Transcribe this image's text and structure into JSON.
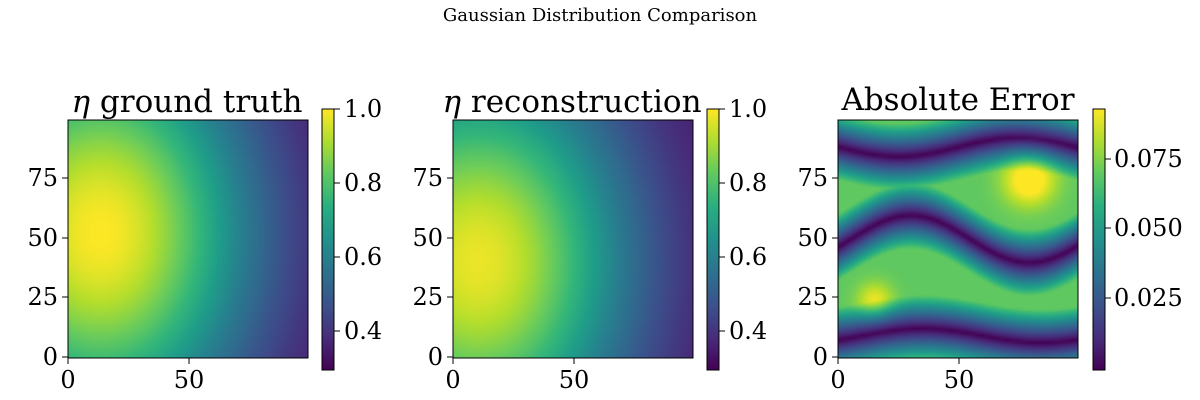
{
  "suptitle": "Gaussian Distribution Comparison",
  "chart_data": [
    {
      "type": "heatmap",
      "title_symbol": "η",
      "title": "ground truth",
      "colormap": "viridis",
      "x_ticks": [
        "0",
        "50"
      ],
      "y_ticks": [
        "0",
        "25",
        "50",
        "75"
      ],
      "x_range": [
        0,
        99
      ],
      "y_range": [
        0,
        99
      ],
      "colorbar": {
        "min": 0.29,
        "max": 1.0,
        "ticks": [
          "0.4",
          "0.6",
          "0.8",
          "1.0"
        ],
        "tick_values": [
          0.4,
          0.6,
          0.8,
          1.0
        ]
      },
      "field": {
        "kind": "gaussian_peak",
        "peak_x": 13,
        "peak_y": 52,
        "peak_value": 1.0,
        "min_value": 0.3
      }
    },
    {
      "type": "heatmap",
      "title_symbol": "η",
      "title": "reconstruction",
      "colormap": "viridis",
      "x_ticks": [
        "0",
        "50"
      ],
      "y_ticks": [
        "0",
        "25",
        "50",
        "75"
      ],
      "x_range": [
        0,
        99
      ],
      "y_range": [
        0,
        99
      ],
      "colorbar": {
        "min": 0.29,
        "max": 1.0,
        "ticks": [
          "0.4",
          "0.6",
          "0.8",
          "1.0"
        ],
        "tick_values": [
          0.4,
          0.6,
          0.8,
          1.0
        ]
      },
      "field": {
        "kind": "gaussian_peak",
        "peak_x": 10,
        "peak_y": 40,
        "peak_value": 0.98,
        "min_value": 0.3
      }
    },
    {
      "type": "heatmap",
      "title": "Absolute Error",
      "colormap": "viridis",
      "x_ticks": [
        "0",
        "50"
      ],
      "y_ticks": [
        "0",
        "25",
        "50",
        "75"
      ],
      "x_range": [
        0,
        99
      ],
      "y_range": [
        0,
        99
      ],
      "colorbar": {
        "min": 0.0,
        "max": 0.09,
        "ticks": [
          "0.025",
          "0.050",
          "0.075"
        ],
        "tick_values": [
          0.025,
          0.05,
          0.075
        ]
      },
      "field": {
        "kind": "abs_error",
        "max_value": 0.09
      }
    }
  ]
}
